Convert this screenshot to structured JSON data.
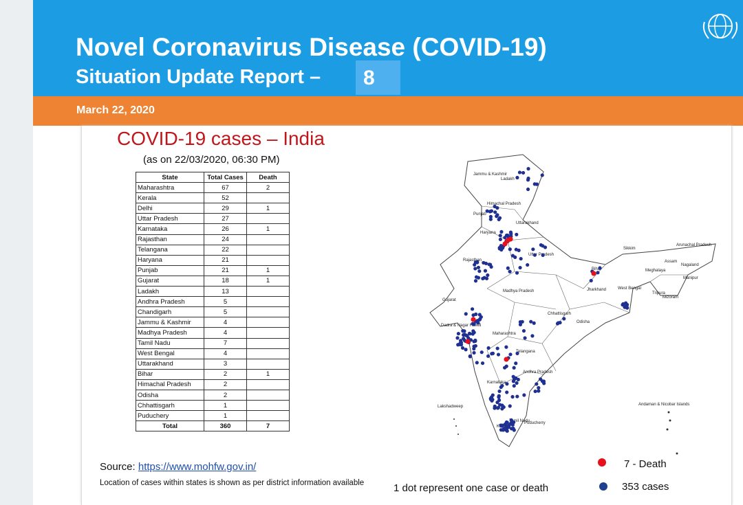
{
  "header": {
    "title": "Novel Coronavirus Disease (COVID-19)",
    "subtitle": "Situation Update Report –",
    "report_number": "8",
    "date": "March 22, 2020"
  },
  "slide": {
    "title": "COVID-19 cases – India",
    "as_on": "(as on 22/03/2020, 06:30 PM)",
    "table": {
      "columns": [
        "State",
        "Total Cases",
        "Death"
      ],
      "rows": [
        [
          "Maharashtra",
          "67",
          "2"
        ],
        [
          "Kerala",
          "52",
          null
        ],
        [
          "Delhi",
          "29",
          "1"
        ],
        [
          "Uttar Pradesh",
          "27",
          null
        ],
        [
          "Karnataka",
          "26",
          "1"
        ],
        [
          "Rajasthan",
          "24",
          null
        ],
        [
          "Telangana",
          "22",
          null
        ],
        [
          "Haryana",
          "21",
          null
        ],
        [
          "Punjab",
          "21",
          "1"
        ],
        [
          "Gujarat",
          "18",
          "1"
        ],
        [
          "Ladakh",
          "13",
          null
        ],
        [
          "Andhra Pradesh",
          "5",
          null
        ],
        [
          "Chandigarh",
          "5",
          null
        ],
        [
          "Jammu & Kashmir",
          "4",
          null
        ],
        [
          "Madhya Pradesh",
          "4",
          null
        ],
        [
          "Tamil Nadu",
          "7",
          null
        ],
        [
          "West Bengal",
          "4",
          null
        ],
        [
          "Uttarakhand",
          "3",
          null
        ],
        [
          "Bihar",
          "2",
          "1"
        ],
        [
          "Himachal Pradesh",
          "2",
          null
        ],
        [
          "Odisha",
          "2",
          null
        ],
        [
          "Chhattisgarh",
          "1",
          null
        ],
        [
          "Puduchery",
          "1",
          null
        ]
      ],
      "total": [
        "Total",
        "360",
        "7"
      ]
    },
    "source_label": "Source:",
    "source_link": "https://www.mohfw.gov.in/",
    "note": "Location of cases within states is shown as per district information available",
    "dot_note": "1 dot represent one case or death",
    "legend": [
      "7 - Death",
      "353 cases"
    ],
    "map_labels": [
      "Jammu & Kashmir",
      "Ladakh",
      "Himachal Pradesh",
      "Punjab",
      "Haryana",
      "Uttarakhand",
      "Rajasthan",
      "Uttar Pradesh",
      "Bihar",
      "Sikkim",
      "Arunachal Pradesh",
      "Assam",
      "Nagaland",
      "Meghalaya",
      "Manipur",
      "Jharkhand",
      "West Bengal",
      "Tripura",
      "Mizoram",
      "Gujarat",
      "Madhya Pradesh",
      "Chhattisgarh",
      "Odisha",
      "Dadra & Nagar Haveli",
      "Maharashtra",
      "Telangana",
      "Andhra Pradesh",
      "Karnataka",
      "Lakshadweep",
      "Tamil Nadu",
      "Puducherry",
      "Kerala",
      "Andaman & Nicobar Islands"
    ]
  }
}
